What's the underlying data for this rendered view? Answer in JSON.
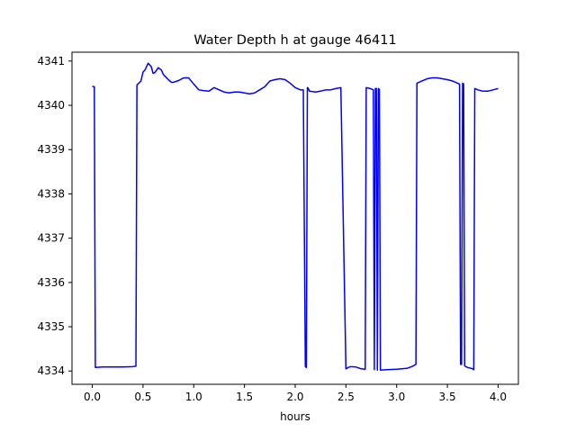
{
  "chart_data": {
    "type": "line",
    "title": "Water Depth h at gauge 46411",
    "xlabel": "hours",
    "ylabel": "",
    "xlim": [
      -0.2,
      4.2
    ],
    "ylim": [
      4333.7,
      4341.2
    ],
    "xticks": [
      {
        "value": 0.0,
        "label": "0.0"
      },
      {
        "value": 0.5,
        "label": "0.5"
      },
      {
        "value": 1.0,
        "label": "1.0"
      },
      {
        "value": 1.5,
        "label": "1.5"
      },
      {
        "value": 2.0,
        "label": "2.0"
      },
      {
        "value": 2.5,
        "label": "2.5"
      },
      {
        "value": 3.0,
        "label": "3.0"
      },
      {
        "value": 3.5,
        "label": "3.5"
      },
      {
        "value": 4.0,
        "label": "4.0"
      }
    ],
    "yticks": [
      {
        "value": 4334,
        "label": "4334"
      },
      {
        "value": 4335,
        "label": "4335"
      },
      {
        "value": 4336,
        "label": "4336"
      },
      {
        "value": 4337,
        "label": "4337"
      },
      {
        "value": 4338,
        "label": "4338"
      },
      {
        "value": 4339,
        "label": "4339"
      },
      {
        "value": 4340,
        "label": "4340"
      },
      {
        "value": 4341,
        "label": "4341"
      }
    ],
    "grid": false,
    "series": [
      {
        "color": "#0000ff",
        "x": [
          0.0,
          0.02,
          0.03,
          0.1,
          0.2,
          0.3,
          0.4,
          0.43,
          0.44,
          0.48,
          0.5,
          0.52,
          0.55,
          0.58,
          0.6,
          0.62,
          0.65,
          0.68,
          0.7,
          0.72,
          0.75,
          0.78,
          0.8,
          0.85,
          0.9,
          0.95,
          1.0,
          1.05,
          1.1,
          1.15,
          1.2,
          1.25,
          1.3,
          1.35,
          1.4,
          1.45,
          1.5,
          1.55,
          1.6,
          1.65,
          1.7,
          1.75,
          1.8,
          1.85,
          1.9,
          1.95,
          2.0,
          2.05,
          2.08,
          2.1,
          2.11,
          2.12,
          2.13,
          2.14,
          2.2,
          2.25,
          2.3,
          2.35,
          2.4,
          2.45,
          2.5,
          2.51,
          2.52,
          2.55,
          2.6,
          2.65,
          2.69,
          2.7,
          2.74,
          2.77,
          2.78,
          2.79,
          2.8,
          2.81,
          2.82,
          2.83,
          2.84,
          2.9,
          3.0,
          3.1,
          3.15,
          3.19,
          3.2,
          3.25,
          3.3,
          3.35,
          3.4,
          3.45,
          3.5,
          3.55,
          3.6,
          3.62,
          3.63,
          3.64,
          3.65,
          3.66,
          3.67,
          3.68,
          3.7,
          3.75,
          3.76,
          3.77,
          3.8,
          3.85,
          3.9,
          3.95,
          4.0
        ],
        "y": [
          4340.43,
          4340.42,
          4334.08,
          4334.09,
          4334.09,
          4334.09,
          4334.1,
          4334.11,
          4340.46,
          4340.55,
          4340.75,
          4340.8,
          4340.95,
          4340.88,
          4340.72,
          4340.75,
          4340.85,
          4340.8,
          4340.7,
          4340.65,
          4340.58,
          4340.52,
          4340.52,
          4340.56,
          4340.62,
          4340.62,
          4340.48,
          4340.35,
          4340.33,
          4340.32,
          4340.4,
          4340.35,
          4340.3,
          4340.28,
          4340.3,
          4340.3,
          4340.28,
          4340.26,
          4340.28,
          4340.35,
          4340.42,
          4340.55,
          4340.58,
          4340.6,
          4340.58,
          4340.5,
          4340.4,
          4340.35,
          4340.35,
          4334.1,
          4334.08,
          4340.4,
          4340.38,
          4340.32,
          4340.3,
          4340.32,
          4340.35,
          4340.35,
          4340.38,
          4340.4,
          4334.05,
          4334.06,
          4334.08,
          4334.1,
          4334.09,
          4334.05,
          4334.04,
          4340.4,
          4340.38,
          4340.35,
          4334.03,
          4340.38,
          4340.38,
          4334.02,
          4340.38,
          4340.36,
          4334.02,
          4334.03,
          4334.04,
          4334.06,
          4334.1,
          4334.15,
          4340.5,
          4340.55,
          4340.6,
          4340.62,
          4340.62,
          4340.6,
          4340.58,
          4340.55,
          4340.5,
          4340.48,
          4334.15,
          4334.15,
          4340.5,
          4340.48,
          4334.12,
          4334.1,
          4334.08,
          4334.05,
          4334.03,
          4340.38,
          4340.35,
          4340.32,
          4340.32,
          4340.35,
          4340.38
        ]
      }
    ]
  }
}
